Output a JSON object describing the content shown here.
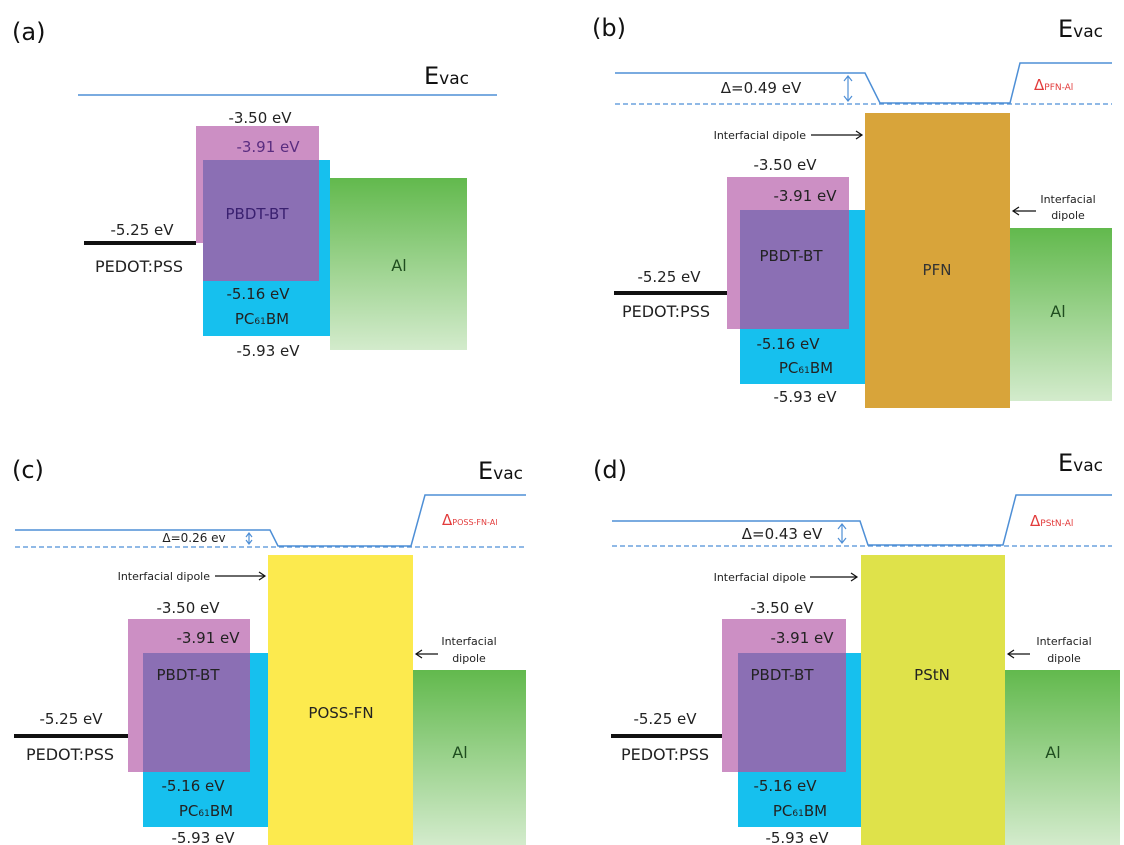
{
  "colors": {
    "pedot": "#111111",
    "polymer_pink": "#cc8fc4",
    "polymer_purple": "#8b6fb4",
    "pcbm": "#16c0ee",
    "pfn": "#d8a43a",
    "possfn": "#fcea4e",
    "pstn": "#dfe24a",
    "al_top": "#62b94d",
    "al_bottom": "#d3ebcc",
    "vacuum": "#4e8fd6",
    "delta_red": "#e23b3b"
  },
  "panels": [
    {
      "tag": "(a)",
      "evac_prefix": "E",
      "evac_sub": "vac",
      "energies": {
        "polymer_lumo": "-3.50 eV",
        "pcbm_lumo": "-3.91 eV",
        "pedot": "-5.25 eV",
        "polymer_homo": "-5.16 eV",
        "pcbm_homo": "-5.93 eV"
      },
      "labels": {
        "pedot": "PEDOT:PSS",
        "polymer": "PBDT-BT",
        "pcbm_pre": "PC",
        "pcbm_sub": "61",
        "pcbm_post": "BM",
        "cathode": "Al"
      }
    },
    {
      "tag": "(b)",
      "evac_prefix": "E",
      "evac_sub": "vac",
      "delta": "Δ=0.49 eV",
      "delta_right_main": "Δ",
      "delta_right_sub": "PFN-Al",
      "interlayer": "PFN",
      "dipole_left": "Interfacial dipole",
      "dipole_right_1": "Interfacial",
      "dipole_right_2": "dipole",
      "energies": {
        "polymer_lumo": "-3.50 eV",
        "pcbm_lumo": "-3.91 eV",
        "pedot": "-5.25 eV",
        "polymer_homo": "-5.16 eV",
        "pcbm_homo": "-5.93 eV"
      },
      "labels": {
        "pedot": "PEDOT:PSS",
        "polymer": "PBDT-BT",
        "pcbm_pre": "PC",
        "pcbm_sub": "61",
        "pcbm_post": "BM",
        "cathode": "Al"
      }
    },
    {
      "tag": "(c)",
      "evac_prefix": "E",
      "evac_sub": "vac",
      "delta": "Δ=0.26 ev",
      "delta_right_main": "Δ",
      "delta_right_sub": "POSS-FN-Al",
      "interlayer": "POSS-FN",
      "dipole_left": "Interfacial dipole",
      "dipole_right_1": "Interfacial",
      "dipole_right_2": "dipole",
      "energies": {
        "polymer_lumo": "-3.50 eV",
        "pcbm_lumo": "-3.91 eV",
        "pedot": "-5.25 eV",
        "polymer_homo": "-5.16 eV",
        "pcbm_homo": "-5.93 eV"
      },
      "labels": {
        "pedot": "PEDOT:PSS",
        "polymer": "PBDT-BT",
        "pcbm_pre": "PC",
        "pcbm_sub": "61",
        "pcbm_post": "BM",
        "cathode": "Al"
      }
    },
    {
      "tag": "(d)",
      "evac_prefix": "E",
      "evac_sub": "vac",
      "delta": "Δ=0.43 eV",
      "delta_right_main": "Δ",
      "delta_right_sub": "PStN-Al",
      "interlayer": "PStN",
      "dipole_left": "Interfacial dipole",
      "dipole_right_1": "Interfacial",
      "dipole_right_2": "dipole",
      "energies": {
        "polymer_lumo": "-3.50 eV",
        "pcbm_lumo": "-3.91 eV",
        "pedot": "-5.25 eV",
        "polymer_homo": "-5.16 eV",
        "pcbm_homo": "-5.93 eV"
      },
      "labels": {
        "pedot": "PEDOT:PSS",
        "polymer": "PBDT-BT",
        "pcbm_pre": "PC",
        "pcbm_sub": "61",
        "pcbm_post": "BM",
        "cathode": "Al"
      }
    }
  ]
}
